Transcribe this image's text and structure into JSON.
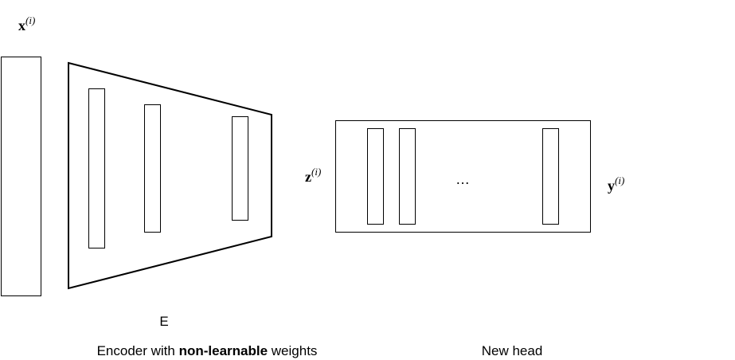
{
  "input": {
    "symbol": "x",
    "superscript": "(i)"
  },
  "encoder": {
    "letter": "E",
    "caption_prefix": "Encoder with ",
    "caption_bold": "non-learnable",
    "caption_suffix": " weights"
  },
  "latent": {
    "symbol": "z",
    "superscript": "(i)"
  },
  "head": {
    "ellipsis": "…",
    "caption": "New head"
  },
  "output": {
    "symbol": "y",
    "superscript": "(i)"
  }
}
